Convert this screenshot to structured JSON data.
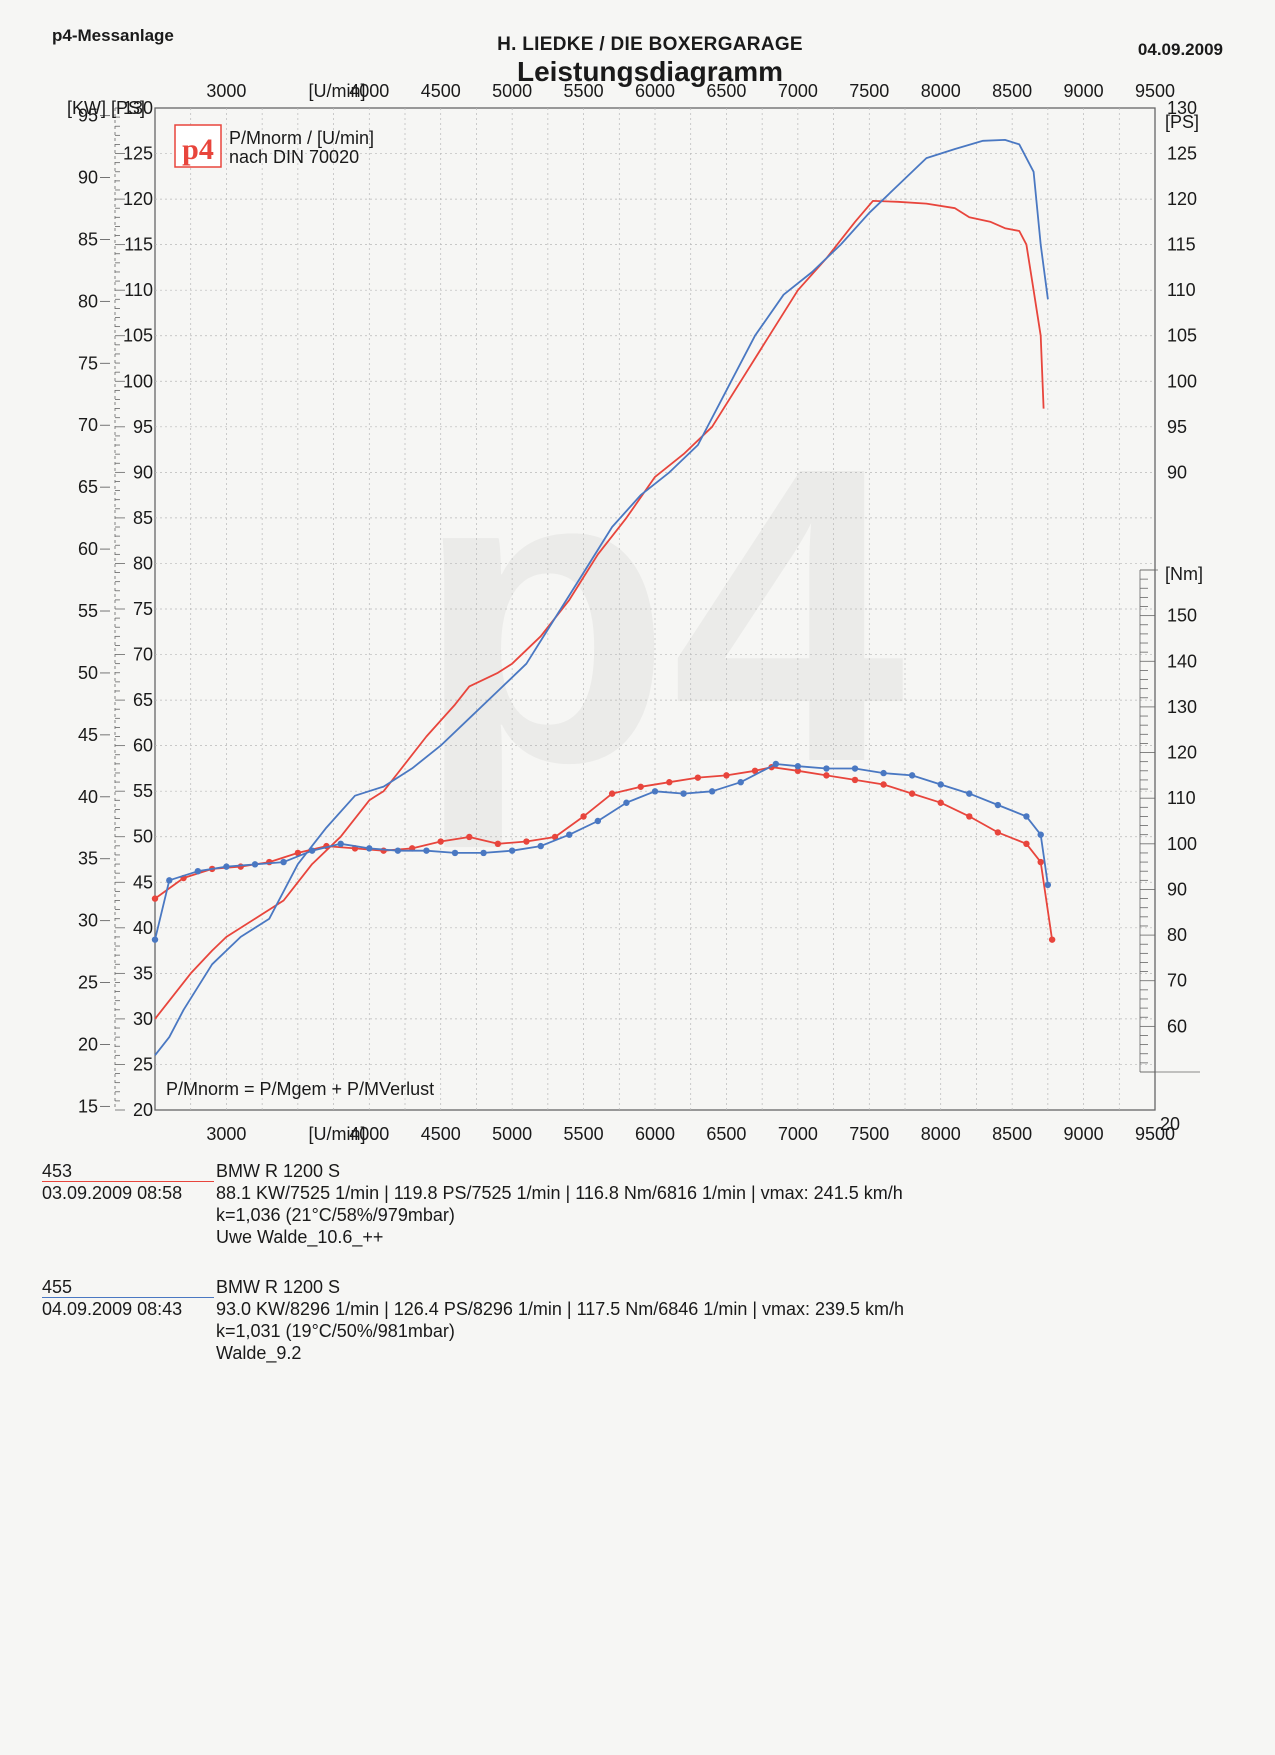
{
  "header": {
    "brand": "p4-Messanlage",
    "workshop": "H. LIEDKE  /  DIE BOXERGARAGE",
    "date": "04.09.2009",
    "title": "Leistungsdiagramm"
  },
  "legend_box": {
    "logo": "p4",
    "line1": "P/Mnorm / [U/min]",
    "line2": "nach DIN 70020"
  },
  "formula": "P/Mnorm = P/Mgem + P/MVerlust",
  "watermark": "p4",
  "colors": {
    "run453": "#e8453c",
    "run455": "#4a78c2",
    "grid": "#b8b8b8",
    "axis": "#666666"
  },
  "runs": [
    {
      "id": "453",
      "datetime": "03.09.2009  08:58",
      "model": "BMW R 1200 S",
      "summary": "88.1 KW/7525 1/min  |  119.8 PS/7525 1/min  |  116.8 Nm/6816 1/min | vmax: 241.5 km/h",
      "conditions": "k=1,036 (21°C/58%/979mbar)",
      "rider": "Uwe Walde_10.6_++"
    },
    {
      "id": "455",
      "datetime": "04.09.2009  08:43",
      "model": "BMW R 1200 S",
      "summary": "93.0 KW/8296 1/min  |  126.4 PS/8296 1/min  |  117.5 Nm/6846 1/min | vmax: 239.5 km/h",
      "conditions": "k=1,031 (19°C/50%/981mbar)",
      "rider": "Walde_9.2"
    }
  ],
  "chart_data": {
    "type": "line",
    "x_unit_label": "[U/min]",
    "xlim": [
      2500,
      9500
    ],
    "x_ticks": [
      3000,
      4000,
      4500,
      5000,
      5500,
      6000,
      6500,
      7000,
      7500,
      8000,
      8500,
      9000,
      9500
    ],
    "axes": {
      "kw": {
        "label": "[KW]",
        "ticks": [
          15,
          20,
          25,
          30,
          35,
          40,
          45,
          50,
          55,
          60,
          65,
          70,
          75,
          80,
          85,
          90,
          95
        ]
      },
      "ps_left": {
        "label": "[PS]",
        "range": [
          20,
          130
        ],
        "ticks": [
          20,
          25,
          30,
          35,
          40,
          45,
          50,
          55,
          60,
          65,
          70,
          75,
          80,
          85,
          90,
          95,
          100,
          105,
          110,
          115,
          120,
          125,
          130
        ]
      },
      "ps_right": {
        "label": "[PS]",
        "ticks": [
          90,
          95,
          100,
          105,
          110,
          115,
          120,
          125,
          130
        ]
      },
      "nm": {
        "label": "[Nm]",
        "range": [
          50,
          160
        ],
        "ticks": [
          60,
          70,
          80,
          90,
          100,
          110,
          120,
          130,
          140,
          150
        ],
        "end_tick": 20
      }
    },
    "series": [
      {
        "name": "453",
        "kind": "power",
        "unit": "PS",
        "points": [
          [
            2500,
            30
          ],
          [
            2600,
            32
          ],
          [
            2750,
            35
          ],
          [
            2900,
            37.5
          ],
          [
            3000,
            39
          ],
          [
            3200,
            41
          ],
          [
            3400,
            43
          ],
          [
            3600,
            47
          ],
          [
            3800,
            50
          ],
          [
            4000,
            54
          ],
          [
            4100,
            55
          ],
          [
            4200,
            57
          ],
          [
            4400,
            61
          ],
          [
            4600,
            64.5
          ],
          [
            4700,
            66.5
          ],
          [
            4900,
            68
          ],
          [
            5000,
            69
          ],
          [
            5200,
            72
          ],
          [
            5400,
            76
          ],
          [
            5600,
            81
          ],
          [
            5800,
            85
          ],
          [
            6000,
            89.5
          ],
          [
            6200,
            92
          ],
          [
            6400,
            95
          ],
          [
            6600,
            100
          ],
          [
            6800,
            105
          ],
          [
            7000,
            110
          ],
          [
            7200,
            113.5
          ],
          [
            7400,
            117.5
          ],
          [
            7525,
            119.8
          ],
          [
            7700,
            119.7
          ],
          [
            7900,
            119.5
          ],
          [
            8100,
            119
          ],
          [
            8200,
            118
          ],
          [
            8350,
            117.5
          ],
          [
            8450,
            116.8
          ],
          [
            8550,
            116.5
          ],
          [
            8600,
            115
          ],
          [
            8650,
            110
          ],
          [
            8700,
            105
          ],
          [
            8720,
            97
          ]
        ]
      },
      {
        "name": "455",
        "kind": "power",
        "unit": "PS",
        "points": [
          [
            2500,
            26
          ],
          [
            2600,
            28
          ],
          [
            2700,
            31
          ],
          [
            2900,
            36
          ],
          [
            3100,
            39
          ],
          [
            3300,
            41
          ],
          [
            3500,
            47
          ],
          [
            3700,
            51
          ],
          [
            3900,
            54.5
          ],
          [
            4100,
            55.5
          ],
          [
            4300,
            57.5
          ],
          [
            4500,
            60
          ],
          [
            4700,
            63
          ],
          [
            4900,
            66
          ],
          [
            5100,
            69
          ],
          [
            5300,
            74
          ],
          [
            5500,
            79
          ],
          [
            5700,
            84
          ],
          [
            5900,
            87.5
          ],
          [
            6100,
            90
          ],
          [
            6300,
            93
          ],
          [
            6500,
            99
          ],
          [
            6700,
            105
          ],
          [
            6900,
            109.5
          ],
          [
            7100,
            112
          ],
          [
            7300,
            115
          ],
          [
            7500,
            118.5
          ],
          [
            7700,
            121.5
          ],
          [
            7900,
            124.5
          ],
          [
            8100,
            125.5
          ],
          [
            8296,
            126.4
          ],
          [
            8450,
            126.5
          ],
          [
            8550,
            126
          ],
          [
            8650,
            123
          ],
          [
            8700,
            115
          ],
          [
            8750,
            109
          ]
        ]
      },
      {
        "name": "453",
        "kind": "torque",
        "unit": "Nm",
        "points": [
          [
            2500,
            88
          ],
          [
            2700,
            92.5
          ],
          [
            2900,
            94.5
          ],
          [
            3100,
            95
          ],
          [
            3300,
            96
          ],
          [
            3500,
            98
          ],
          [
            3700,
            99.5
          ],
          [
            3900,
            99
          ],
          [
            4100,
            98.5
          ],
          [
            4300,
            99
          ],
          [
            4500,
            100.5
          ],
          [
            4700,
            101.5
          ],
          [
            4900,
            100
          ],
          [
            5100,
            100.5
          ],
          [
            5300,
            101.5
          ],
          [
            5500,
            106
          ],
          [
            5700,
            111
          ],
          [
            5900,
            112.5
          ],
          [
            6100,
            113.5
          ],
          [
            6300,
            114.5
          ],
          [
            6500,
            115
          ],
          [
            6700,
            116
          ],
          [
            6816,
            116.8
          ],
          [
            7000,
            116
          ],
          [
            7200,
            115
          ],
          [
            7400,
            114
          ],
          [
            7600,
            113
          ],
          [
            7800,
            111
          ],
          [
            8000,
            109
          ],
          [
            8200,
            106
          ],
          [
            8400,
            102.5
          ],
          [
            8600,
            100
          ],
          [
            8700,
            96
          ],
          [
            8780,
            79
          ]
        ]
      },
      {
        "name": "455",
        "kind": "torque",
        "unit": "Nm",
        "points": [
          [
            2500,
            79
          ],
          [
            2600,
            92
          ],
          [
            2800,
            94
          ],
          [
            3000,
            95
          ],
          [
            3200,
            95.5
          ],
          [
            3400,
            96
          ],
          [
            3600,
            98.5
          ],
          [
            3800,
            100
          ],
          [
            4000,
            99
          ],
          [
            4200,
            98.5
          ],
          [
            4400,
            98.5
          ],
          [
            4600,
            98
          ],
          [
            4800,
            98
          ],
          [
            5000,
            98.5
          ],
          [
            5200,
            99.5
          ],
          [
            5400,
            102
          ],
          [
            5600,
            105
          ],
          [
            5800,
            109
          ],
          [
            6000,
            111.5
          ],
          [
            6200,
            111
          ],
          [
            6400,
            111.5
          ],
          [
            6600,
            113.5
          ],
          [
            6846,
            117.5
          ],
          [
            7000,
            117
          ],
          [
            7200,
            116.5
          ],
          [
            7400,
            116.5
          ],
          [
            7600,
            115.5
          ],
          [
            7800,
            115
          ],
          [
            8000,
            113
          ],
          [
            8200,
            111
          ],
          [
            8400,
            108.5
          ],
          [
            8600,
            106
          ],
          [
            8700,
            102
          ],
          [
            8750,
            91
          ]
        ]
      }
    ]
  }
}
